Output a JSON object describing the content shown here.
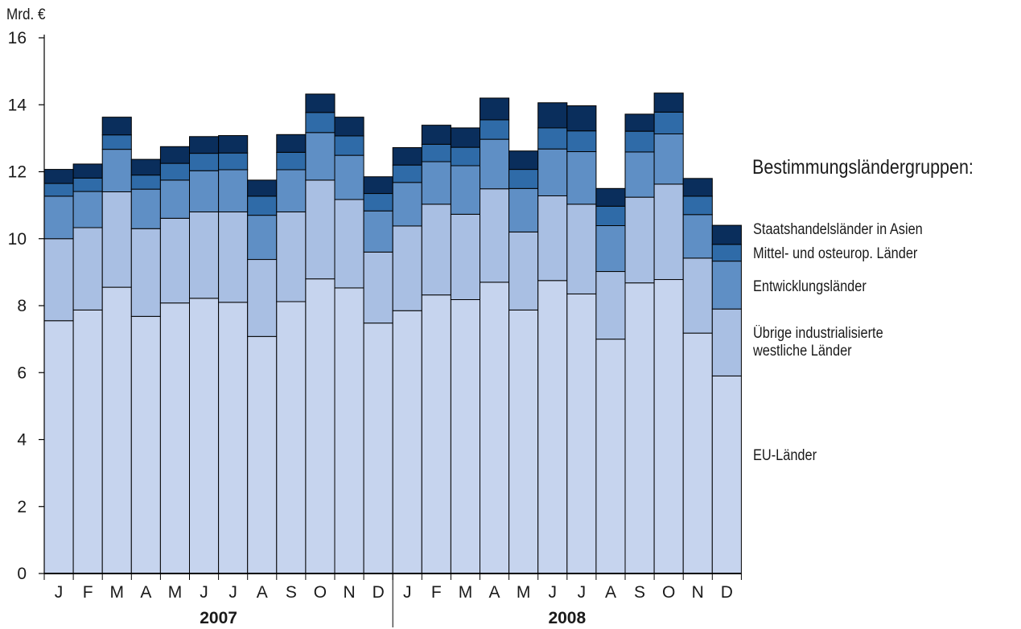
{
  "chart_data": {
    "type": "bar",
    "stacked": true,
    "ylabel": "Mrd. €",
    "ylim": [
      0,
      16
    ],
    "yticks": [
      "0",
      "2",
      "4",
      "6",
      "8",
      "10",
      "12",
      "14",
      "16"
    ],
    "categories": [
      "J",
      "F",
      "M",
      "A",
      "M",
      "J",
      "J",
      "A",
      "S",
      "O",
      "N",
      "D",
      "J",
      "F",
      "M",
      "A",
      "M",
      "J",
      "J",
      "A",
      "S",
      "O",
      "N",
      "D"
    ],
    "year_groups": [
      {
        "label": "2007",
        "count": 12
      },
      {
        "label": "2008",
        "count": 12
      }
    ],
    "legend_title": "Bestimmungsländergruppen:",
    "series": [
      {
        "name": "EU-Länder",
        "color": "#c6d4ee",
        "values": [
          7.55,
          7.87,
          8.55,
          7.68,
          8.08,
          8.22,
          8.1,
          7.08,
          8.12,
          8.8,
          8.53,
          7.48,
          7.85,
          8.32,
          8.18,
          8.7,
          7.87,
          8.75,
          8.35,
          7.0,
          8.68,
          8.78,
          7.18,
          5.9
        ]
      },
      {
        "name": "Übrige industrialisierte\nwestliche Länder",
        "color": "#a9bfe3",
        "values": [
          2.45,
          2.46,
          2.85,
          2.62,
          2.53,
          2.58,
          2.7,
          2.3,
          2.68,
          2.95,
          2.64,
          2.12,
          2.53,
          2.71,
          2.55,
          2.79,
          2.33,
          2.53,
          2.68,
          2.02,
          2.56,
          2.85,
          2.24,
          2.0
        ]
      },
      {
        "name": "Entwicklungsländer",
        "color": "#5f8fc5",
        "values": [
          1.27,
          1.08,
          1.27,
          1.18,
          1.14,
          1.23,
          1.26,
          1.32,
          1.26,
          1.42,
          1.32,
          1.23,
          1.3,
          1.27,
          1.45,
          1.48,
          1.3,
          1.4,
          1.57,
          1.37,
          1.35,
          1.5,
          1.3,
          1.43
        ]
      },
      {
        "name": "Mittel- und osteurop. Länder",
        "color": "#2f6ba8",
        "values": [
          0.38,
          0.4,
          0.43,
          0.42,
          0.5,
          0.52,
          0.5,
          0.57,
          0.52,
          0.6,
          0.58,
          0.52,
          0.52,
          0.52,
          0.55,
          0.58,
          0.57,
          0.63,
          0.62,
          0.58,
          0.62,
          0.65,
          0.55,
          0.5
        ]
      },
      {
        "name": "Staatshandelsländer in Asien",
        "color": "#0a2e5c",
        "values": [
          0.42,
          0.42,
          0.53,
          0.47,
          0.5,
          0.5,
          0.52,
          0.48,
          0.53,
          0.55,
          0.56,
          0.5,
          0.52,
          0.57,
          0.58,
          0.65,
          0.55,
          0.75,
          0.75,
          0.53,
          0.51,
          0.57,
          0.53,
          0.57
        ]
      }
    ]
  }
}
